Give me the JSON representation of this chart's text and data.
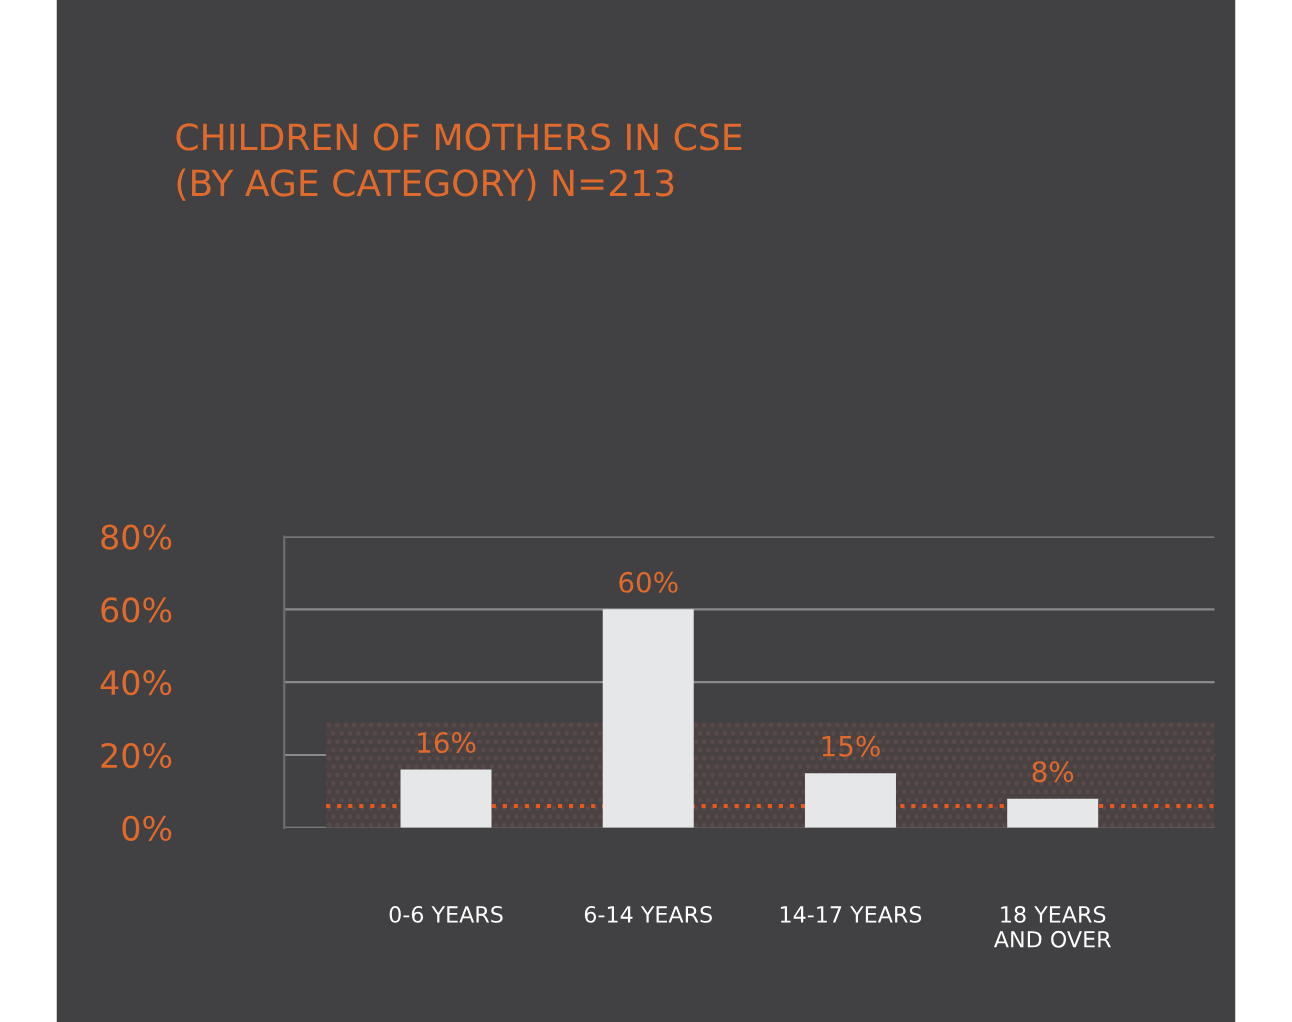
{
  "chart_data": {
    "type": "bar",
    "title": "CHILDREN OF MOTHERS IN CSE\n(BY AGE CATEGORY) N=213",
    "categories": [
      "0-6 YEARS",
      "6-14 YEARS",
      "14-17 YEARS",
      "18 YEARS\nAND OVER"
    ],
    "values": [
      16,
      60,
      15,
      8
    ],
    "color": "#e6e7e8",
    "value_labels": [
      "16%",
      "60%",
      "15%",
      "8%"
    ],
    "ylim": [
      0,
      80
    ],
    "yticks": [
      {
        "value": 0,
        "label": "0%"
      },
      {
        "value": 20,
        "label": "20%"
      },
      {
        "value": 40,
        "label": "40%"
      },
      {
        "value": 60,
        "label": "60%"
      },
      {
        "value": 80,
        "label": "80%"
      }
    ],
    "grid": "y",
    "bands": [
      {
        "axis": "y",
        "from": 0,
        "to": 29,
        "color": "#4a4242"
      }
    ],
    "ref_lines": [
      {
        "axis": "y",
        "value": 6,
        "color": "#e8581c",
        "line_style": "dotted"
      }
    ]
  }
}
